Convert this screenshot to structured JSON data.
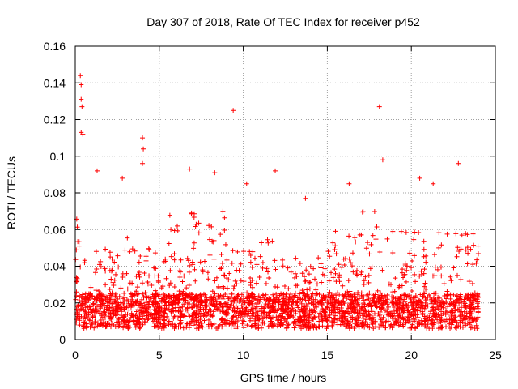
{
  "chart_data": {
    "type": "scatter",
    "title": "Day 307 of 2018, Rate Of TEC Index for receiver p452",
    "xlabel": "GPS time / hours",
    "ylabel": "ROTI / TECUs",
    "xlim": [
      0,
      25
    ],
    "ylim": [
      0,
      0.16
    ],
    "x_ticks": [
      0,
      5,
      10,
      15,
      20,
      25
    ],
    "x_tick_labels": [
      "0",
      "5",
      "10",
      "15",
      "20",
      "25"
    ],
    "y_ticks": [
      0,
      0.02,
      0.04,
      0.06,
      0.08,
      0.1,
      0.12,
      0.14,
      0.16
    ],
    "y_tick_labels": [
      "0",
      "0.02",
      "0.04",
      "0.06",
      "0.08",
      "0.1",
      "0.12",
      "0.14",
      "0.16"
    ],
    "grid": true,
    "marker": "+",
    "color": "#ff0000",
    "x_range_of_data": [
      0,
      24
    ],
    "notable_points": [
      {
        "x": 0.3,
        "y": 0.144
      },
      {
        "x": 0.35,
        "y": 0.139
      },
      {
        "x": 0.35,
        "y": 0.131
      },
      {
        "x": 0.4,
        "y": 0.127
      },
      {
        "x": 0.35,
        "y": 0.113
      },
      {
        "x": 0.45,
        "y": 0.112
      },
      {
        "x": 4.0,
        "y": 0.11
      },
      {
        "x": 4.05,
        "y": 0.104
      },
      {
        "x": 4.0,
        "y": 0.096
      },
      {
        "x": 9.4,
        "y": 0.125
      },
      {
        "x": 18.1,
        "y": 0.127
      },
      {
        "x": 18.3,
        "y": 0.098
      },
      {
        "x": 22.8,
        "y": 0.096
      },
      {
        "x": 11.9,
        "y": 0.092
      },
      {
        "x": 8.3,
        "y": 0.091
      },
      {
        "x": 6.8,
        "y": 0.093
      },
      {
        "x": 1.3,
        "y": 0.092
      },
      {
        "x": 21.3,
        "y": 0.085
      },
      {
        "x": 20.5,
        "y": 0.088
      },
      {
        "x": 16.3,
        "y": 0.085
      },
      {
        "x": 2.8,
        "y": 0.088
      },
      {
        "x": 10.2,
        "y": 0.085
      },
      {
        "x": 13.7,
        "y": 0.077
      }
    ],
    "activity_bands": [
      {
        "x_start": 0.0,
        "x_end": 0.6,
        "typical_max": 0.07
      },
      {
        "x_start": 0.6,
        "x_end": 1.2,
        "typical_max": 0.03
      },
      {
        "x_start": 1.2,
        "x_end": 2.5,
        "typical_max": 0.05
      },
      {
        "x_start": 2.5,
        "x_end": 3.5,
        "typical_max": 0.06
      },
      {
        "x_start": 3.5,
        "x_end": 5.5,
        "typical_max": 0.05
      },
      {
        "x_start": 5.5,
        "x_end": 9.0,
        "typical_max": 0.07
      },
      {
        "x_start": 9.0,
        "x_end": 11.0,
        "typical_max": 0.05
      },
      {
        "x_start": 11.0,
        "x_end": 12.5,
        "typical_max": 0.06
      },
      {
        "x_start": 12.5,
        "x_end": 15.0,
        "typical_max": 0.045
      },
      {
        "x_start": 15.0,
        "x_end": 17.0,
        "typical_max": 0.06
      },
      {
        "x_start": 17.0,
        "x_end": 19.0,
        "typical_max": 0.07
      },
      {
        "x_start": 19.0,
        "x_end": 22.0,
        "typical_max": 0.06
      },
      {
        "x_start": 22.0,
        "x_end": 24.0,
        "typical_max": 0.06
      }
    ],
    "typical_baseline": [
      0.006,
      0.025
    ]
  }
}
